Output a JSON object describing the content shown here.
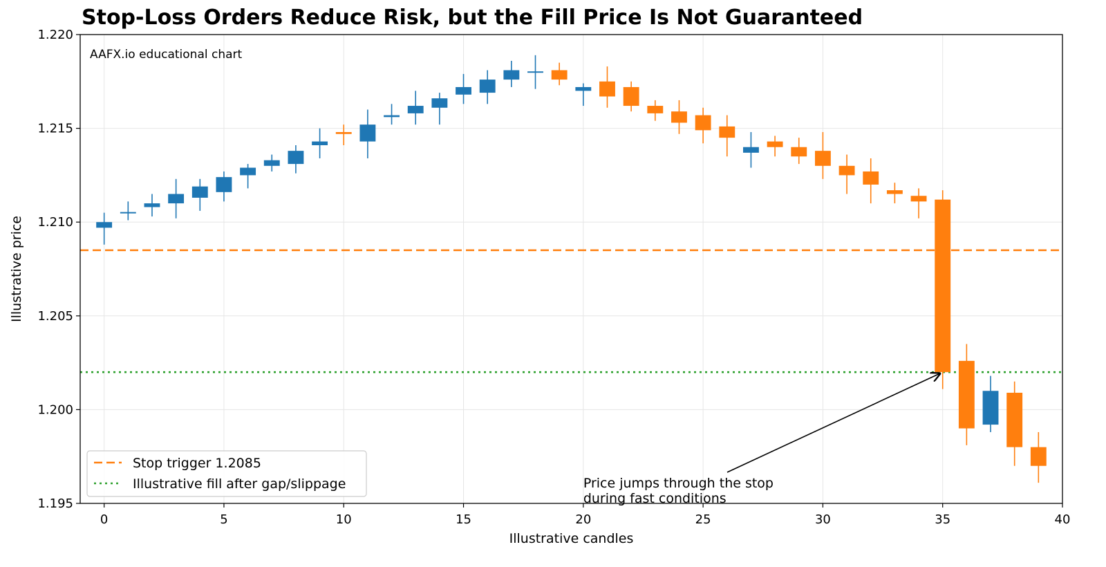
{
  "chart_data": {
    "type": "candlestick",
    "title": "Stop-Loss Orders Reduce Risk, but the Fill Price Is Not Guaranteed",
    "watermark": "AAFX.io educational chart",
    "xlabel": "Illustrative candles",
    "ylabel": "Illustrative price",
    "xlim": [
      -1,
      40
    ],
    "ylim": [
      1.195,
      1.22
    ],
    "x_ticks": [
      0,
      5,
      10,
      15,
      20,
      25,
      30,
      35,
      40
    ],
    "x_tick_labels": [
      "0",
      "5",
      "10",
      "15",
      "20",
      "25",
      "30",
      "35",
      "40"
    ],
    "y_ticks": [
      1.195,
      1.2,
      1.205,
      1.21,
      1.215,
      1.22
    ],
    "y_tick_labels": [
      "1.195",
      "1.200",
      "1.205",
      "1.210",
      "1.215",
      "1.220"
    ],
    "grid": true,
    "colors": {
      "up": "#1f77b4",
      "down": "#ff7f0e",
      "stop": "#ff7f0e",
      "fill": "#2ca02c"
    },
    "candles": [
      {
        "x": 0,
        "open": 1.2097,
        "high": 1.2105,
        "low": 1.2088,
        "close": 1.21
      },
      {
        "x": 1,
        "open": 1.2105,
        "high": 1.2111,
        "low": 1.2101,
        "close": 1.2105
      },
      {
        "x": 2,
        "open": 1.2108,
        "high": 1.2115,
        "low": 1.2103,
        "close": 1.211
      },
      {
        "x": 3,
        "open": 1.211,
        "high": 1.2123,
        "low": 1.2102,
        "close": 1.2115
      },
      {
        "x": 4,
        "open": 1.2113,
        "high": 1.2123,
        "low": 1.2106,
        "close": 1.2119
      },
      {
        "x": 5,
        "open": 1.2116,
        "high": 1.2127,
        "low": 1.2111,
        "close": 1.2124
      },
      {
        "x": 6,
        "open": 1.2125,
        "high": 1.2131,
        "low": 1.2118,
        "close": 1.2129
      },
      {
        "x": 7,
        "open": 1.213,
        "high": 1.2136,
        "low": 1.2127,
        "close": 1.2133
      },
      {
        "x": 8,
        "open": 1.2131,
        "high": 1.2141,
        "low": 1.2126,
        "close": 1.2138
      },
      {
        "x": 9,
        "open": 1.2141,
        "high": 1.215,
        "low": 1.2134,
        "close": 1.2143
      },
      {
        "x": 10,
        "open": 1.2148,
        "high": 1.2152,
        "low": 1.2141,
        "close": 1.2147
      },
      {
        "x": 11,
        "open": 1.2143,
        "high": 1.216,
        "low": 1.2134,
        "close": 1.2152
      },
      {
        "x": 12,
        "open": 1.2156,
        "high": 1.2163,
        "low": 1.2152,
        "close": 1.2157
      },
      {
        "x": 13,
        "open": 1.2158,
        "high": 1.217,
        "low": 1.2152,
        "close": 1.2162
      },
      {
        "x": 14,
        "open": 1.2161,
        "high": 1.2169,
        "low": 1.2152,
        "close": 1.2166
      },
      {
        "x": 15,
        "open": 1.2168,
        "high": 1.2179,
        "low": 1.2163,
        "close": 1.2172
      },
      {
        "x": 16,
        "open": 1.2169,
        "high": 1.2181,
        "low": 1.2163,
        "close": 1.2176
      },
      {
        "x": 17,
        "open": 1.2176,
        "high": 1.2186,
        "low": 1.2172,
        "close": 1.2181
      },
      {
        "x": 18,
        "open": 1.218,
        "high": 1.2189,
        "low": 1.2171,
        "close": 1.218
      },
      {
        "x": 19,
        "open": 1.2181,
        "high": 1.2185,
        "low": 1.2173,
        "close": 1.2176
      },
      {
        "x": 20,
        "open": 1.217,
        "high": 1.2174,
        "low": 1.2162,
        "close": 1.2172
      },
      {
        "x": 21,
        "open": 1.2175,
        "high": 1.2183,
        "low": 1.2161,
        "close": 1.2167
      },
      {
        "x": 22,
        "open": 1.2172,
        "high": 1.2175,
        "low": 1.2159,
        "close": 1.2162
      },
      {
        "x": 23,
        "open": 1.2162,
        "high": 1.2165,
        "low": 1.2154,
        "close": 1.2158
      },
      {
        "x": 24,
        "open": 1.2159,
        "high": 1.2165,
        "low": 1.2147,
        "close": 1.2153
      },
      {
        "x": 25,
        "open": 1.2157,
        "high": 1.2161,
        "low": 1.2142,
        "close": 1.2149
      },
      {
        "x": 26,
        "open": 1.2151,
        "high": 1.2157,
        "low": 1.2135,
        "close": 1.2145
      },
      {
        "x": 27,
        "open": 1.2137,
        "high": 1.2148,
        "low": 1.2129,
        "close": 1.214
      },
      {
        "x": 28,
        "open": 1.2143,
        "high": 1.2146,
        "low": 1.2135,
        "close": 1.214
      },
      {
        "x": 29,
        "open": 1.214,
        "high": 1.2145,
        "low": 1.2131,
        "close": 1.2135
      },
      {
        "x": 30,
        "open": 1.2138,
        "high": 1.2148,
        "low": 1.2123,
        "close": 1.213
      },
      {
        "x": 31,
        "open": 1.213,
        "high": 1.2136,
        "low": 1.2115,
        "close": 1.2125
      },
      {
        "x": 32,
        "open": 1.2127,
        "high": 1.2134,
        "low": 1.211,
        "close": 1.212
      },
      {
        "x": 33,
        "open": 1.2117,
        "high": 1.2121,
        "low": 1.211,
        "close": 1.2115
      },
      {
        "x": 34,
        "open": 1.2114,
        "high": 1.2118,
        "low": 1.2102,
        "close": 1.2111
      },
      {
        "x": 35,
        "open": 1.2112,
        "high": 1.2117,
        "low": 1.2011,
        "close": 1.202
      },
      {
        "x": 36,
        "open": 1.2026,
        "high": 1.2035,
        "low": 1.1981,
        "close": 1.199
      },
      {
        "x": 37,
        "open": 1.1992,
        "high": 1.2018,
        "low": 1.1988,
        "close": 1.201
      },
      {
        "x": 38,
        "open": 1.2009,
        "high": 1.2015,
        "low": 1.197,
        "close": 1.198
      },
      {
        "x": 39,
        "open": 1.198,
        "high": 1.1988,
        "low": 1.1961,
        "close": 1.197
      }
    ],
    "hlines": [
      {
        "y": 1.2085,
        "style": "dashed",
        "color": "#ff7f0e",
        "label": "Stop trigger 1.2085"
      },
      {
        "y": 1.202,
        "style": "dotted",
        "color": "#2ca02c",
        "label": "Illustrative fill after gap/slippage"
      }
    ],
    "legend_position": "lower-left",
    "annotation": {
      "text_lines": [
        "Price jumps through the stop",
        "during fast conditions"
      ],
      "text_xy": [
        20,
        1.1962
      ],
      "arrow_to": [
        35,
        1.202
      ]
    }
  }
}
